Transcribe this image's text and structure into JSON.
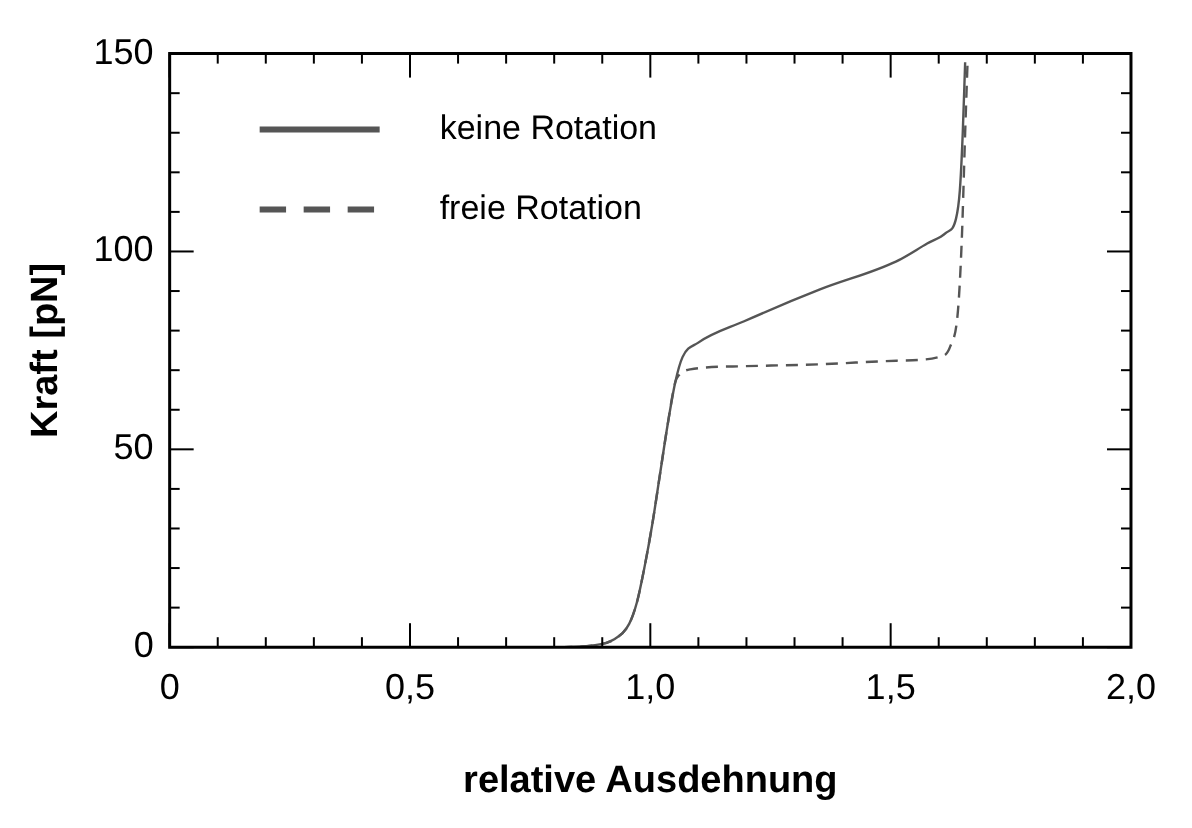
{
  "chart_data": {
    "type": "line",
    "xlabel": "relative Ausdehnung",
    "ylabel": "Kraft [pN]",
    "xlim": [
      0,
      2
    ],
    "ylim": [
      0,
      150
    ],
    "xticks": [
      0,
      {
        "value": 0.5,
        "label": "0,5"
      },
      {
        "value": 1,
        "label": "1,0"
      },
      {
        "value": 1.5,
        "label": "1,5"
      },
      {
        "value": 2,
        "label": "2,0"
      }
    ],
    "yticks": [
      0,
      50,
      100,
      150
    ],
    "grid": false,
    "legend": "top left",
    "marker": "none",
    "series": [
      {
        "name": "keine Rotation",
        "color": "#555555",
        "line_style": "solid",
        "x": [
          0.813,
          0.877,
          0.925,
          0.956,
          0.972,
          0.988,
          1.004,
          1.02,
          1.036,
          1.052,
          1.067,
          1.099,
          1.194,
          1.353,
          1.512,
          1.576,
          1.615,
          1.636,
          1.644,
          1.65,
          1.655
        ],
        "values": [
          0,
          0.4,
          2,
          5.9,
          11.3,
          20.3,
          31,
          43.6,
          56.2,
          67,
          73.3,
          76.9,
          82.3,
          90.4,
          97.5,
          102,
          104.7,
          108.3,
          115.5,
          129.9,
          147.8
        ]
      },
      {
        "name": "freie Rotation",
        "color": "#555555",
        "line_style": "dashed",
        "x": [
          0.813,
          0.877,
          0.925,
          0.956,
          0.972,
          0.988,
          1.004,
          1.02,
          1.036,
          1.052,
          1.06,
          1.083,
          1.194,
          1.353,
          1.512,
          1.6,
          1.624,
          1.64,
          1.648,
          1.655,
          1.66
        ],
        "values": [
          0,
          0.4,
          2,
          5.9,
          11.3,
          20.3,
          31,
          43.6,
          56.2,
          67,
          68.8,
          70.2,
          71,
          71.5,
          72.4,
          73.3,
          76,
          85,
          103,
          130,
          147.8
        ]
      }
    ]
  }
}
